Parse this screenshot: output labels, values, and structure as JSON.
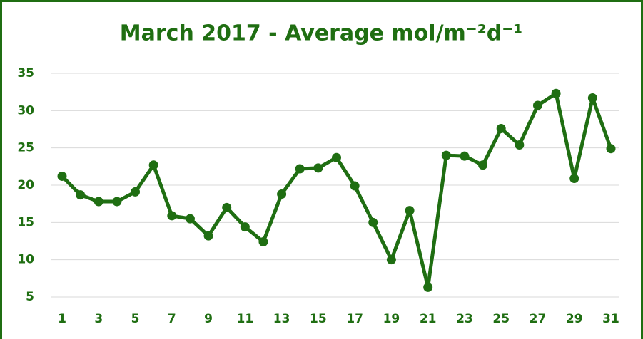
{
  "chart_data": {
    "type": "line",
    "title": "March 2017 - Average mol/m⁻²d⁻¹",
    "x": [
      1,
      2,
      3,
      4,
      5,
      6,
      7,
      8,
      9,
      10,
      11,
      12,
      13,
      14,
      15,
      16,
      17,
      18,
      19,
      20,
      21,
      22,
      23,
      24,
      25,
      26,
      27,
      28,
      29,
      30,
      31
    ],
    "series": [
      {
        "name": "Average",
        "color": "#1f6e12",
        "values": [
          21.2,
          18.7,
          17.8,
          17.8,
          19.1,
          22.7,
          15.9,
          15.5,
          13.2,
          17.0,
          14.4,
          12.4,
          18.8,
          22.2,
          22.3,
          23.7,
          19.9,
          15.0,
          10.0,
          16.6,
          6.3,
          24.0,
          23.9,
          22.7,
          27.6,
          25.4,
          30.7,
          32.3,
          20.9,
          31.7,
          24.9
        ]
      }
    ],
    "xlim": [
      1,
      31
    ],
    "xticks": [
      1,
      3,
      5,
      7,
      9,
      11,
      13,
      15,
      17,
      19,
      21,
      23,
      25,
      27,
      29,
      31
    ],
    "ylim": [
      5,
      35
    ],
    "yticks": [
      5,
      10,
      15,
      20,
      25,
      30,
      35
    ],
    "grid": true
  }
}
